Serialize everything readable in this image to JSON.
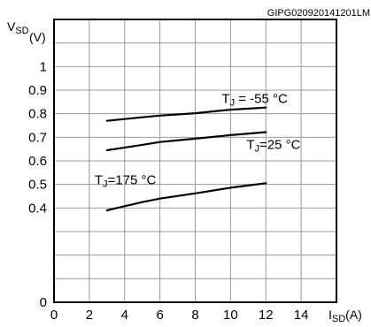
{
  "corner_code": "GIPG020920141201LM",
  "chart_data": {
    "type": "line",
    "xlabel": {
      "main": "I",
      "sub": "SD",
      "unit": "(A)"
    },
    "ylabel": {
      "main": "V",
      "sub": "SD",
      "unit": "(V)"
    },
    "xlim": [
      0,
      16
    ],
    "ylim": [
      0,
      1.2
    ],
    "x_ticks": [
      0,
      2,
      4,
      6,
      8,
      10,
      12,
      14
    ],
    "x_tick_labels": [
      "0",
      "2",
      "4",
      "6",
      "8",
      "10",
      "12",
      "14"
    ],
    "y_ticks": [
      0,
      0.4,
      0.5,
      0.6,
      0.7,
      0.8,
      0.9,
      1
    ],
    "y_tick_labels": [
      "0",
      "0.4",
      "0.5",
      "0.6",
      "0.7",
      "0.8",
      "0.9",
      "1"
    ],
    "grid": true,
    "series": [
      {
        "name": "TJ = -55 °C",
        "label_main": "T",
        "label_sub": "J",
        "label_rest": " = -55 °C",
        "x": [
          3,
          5,
          6,
          8,
          10,
          12
        ],
        "y": [
          0.77,
          0.785,
          0.792,
          0.802,
          0.817,
          0.826
        ]
      },
      {
        "name": "TJ=25 °C",
        "label_main": "T",
        "label_sub": "J",
        "label_rest": "=25 °C",
        "x": [
          3,
          5,
          6,
          8,
          10,
          12
        ],
        "y": [
          0.645,
          0.668,
          0.68,
          0.694,
          0.709,
          0.722
        ]
      },
      {
        "name": "TJ=175 °C",
        "label_main": "T",
        "label_sub": "J",
        "label_rest": "=175 °C",
        "x": [
          3,
          5,
          6,
          8,
          10,
          12
        ],
        "y": [
          0.39,
          0.425,
          0.44,
          0.462,
          0.486,
          0.505
        ]
      }
    ]
  }
}
